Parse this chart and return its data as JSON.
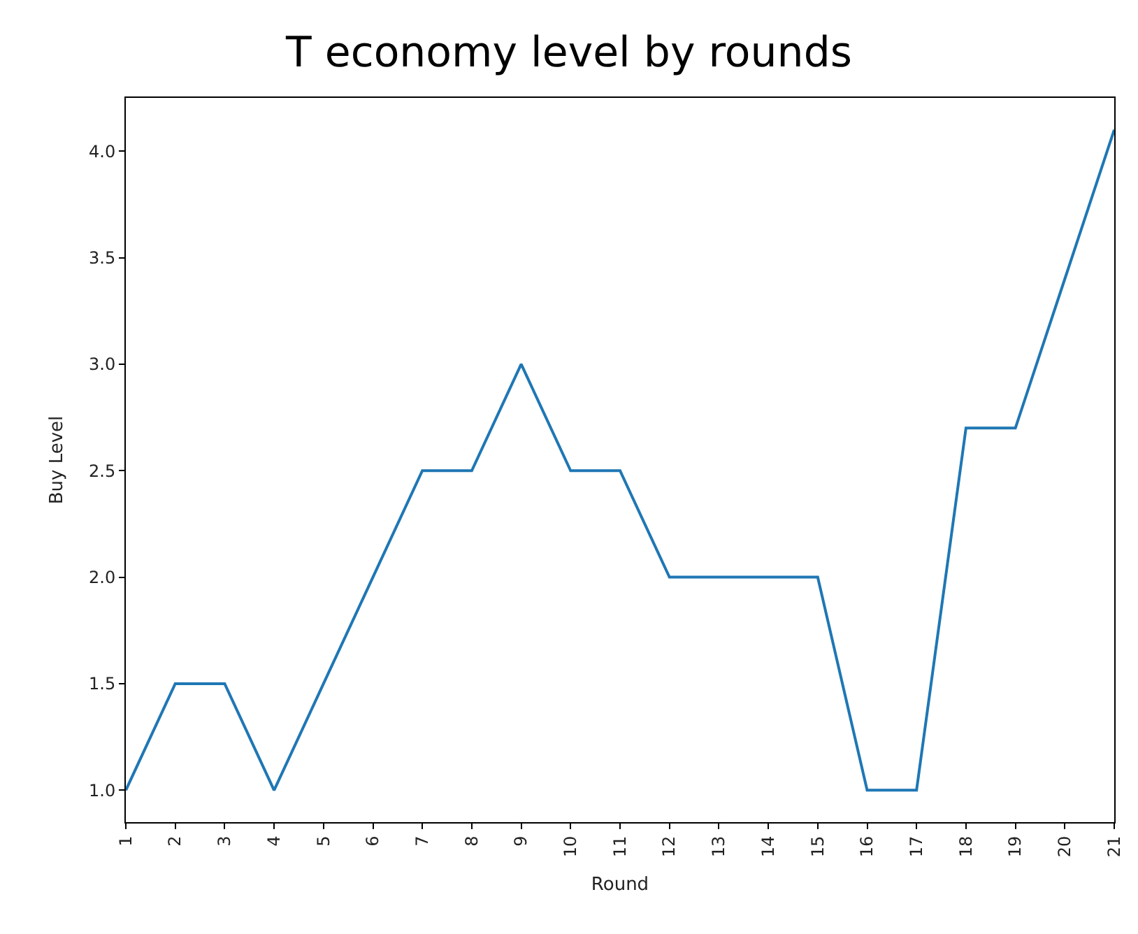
{
  "chart_data": {
    "type": "line",
    "title": "T economy level by rounds",
    "xlabel": "Round",
    "ylabel": "Buy Level",
    "x": [
      1,
      2,
      3,
      4,
      5,
      6,
      7,
      8,
      9,
      10,
      11,
      12,
      13,
      14,
      15,
      16,
      17,
      18,
      19,
      20,
      21
    ],
    "series": [
      {
        "color": "#1f77b4",
        "values": [
          1.0,
          1.5,
          1.5,
          1.0,
          1.5,
          2.0,
          2.5,
          2.5,
          3.0,
          2.5,
          2.5,
          2.0,
          2.0,
          2.0,
          2.0,
          1.0,
          1.0,
          2.7,
          2.7,
          3.4,
          4.1
        ]
      }
    ],
    "xlim": [
      1,
      21
    ],
    "xticks": [
      1,
      2,
      3,
      4,
      5,
      6,
      7,
      8,
      9,
      10,
      11,
      12,
      13,
      14,
      15,
      16,
      17,
      18,
      19,
      20,
      21
    ],
    "ylim": [
      0.85,
      4.25
    ],
    "yticks": [
      {
        "value": 1.0,
        "label": "1.0"
      },
      {
        "value": 1.5,
        "label": "1.5"
      },
      {
        "value": 2.0,
        "label": "2.0"
      },
      {
        "value": 2.5,
        "label": "2.5"
      },
      {
        "value": 3.0,
        "label": "3.0"
      },
      {
        "value": 3.5,
        "label": "3.5"
      },
      {
        "value": 4.0,
        "label": "4.0"
      }
    ],
    "marker": "none",
    "line_style": "solid"
  }
}
